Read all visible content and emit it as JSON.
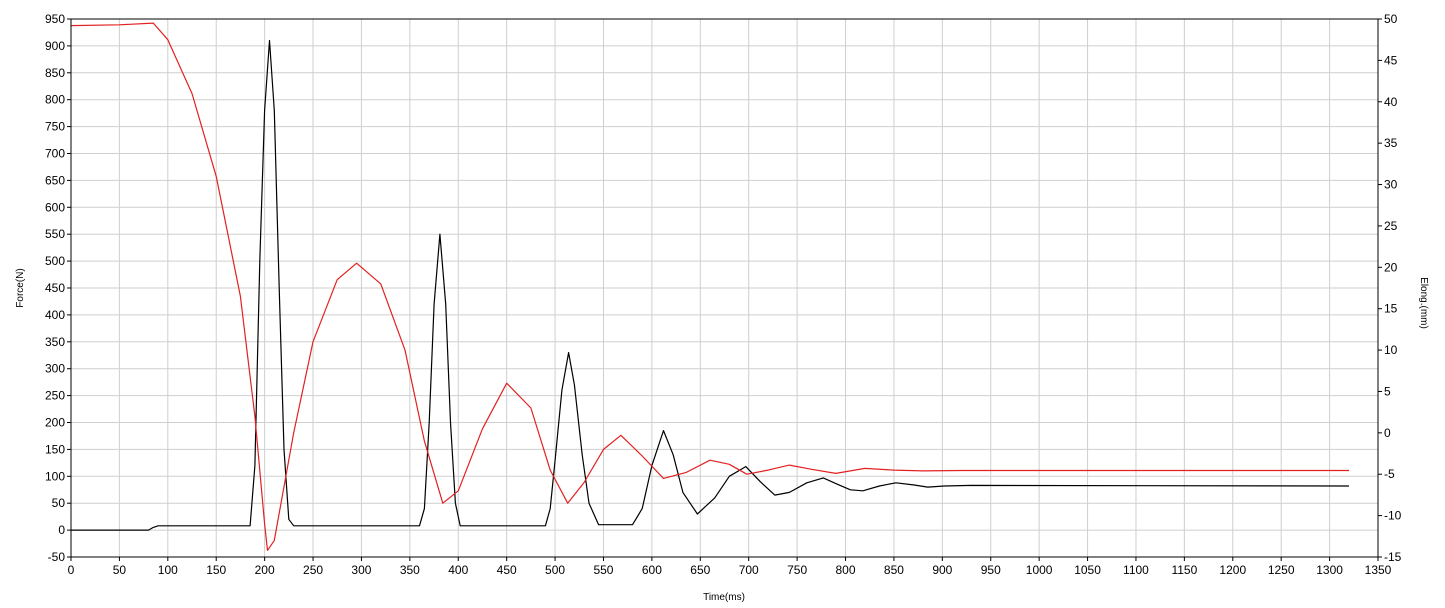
{
  "chart_data": {
    "type": "line",
    "xlabel": "Time(ms)",
    "ylabel_left": "Force(N)",
    "ylabel_right": "Elong.(mm)",
    "xlim": [
      0,
      1350
    ],
    "ylim_left": [
      -50,
      950
    ],
    "ylim_right": [
      -15,
      50
    ],
    "x_ticks": [
      0,
      50,
      100,
      150,
      200,
      250,
      300,
      350,
      400,
      450,
      500,
      550,
      600,
      650,
      700,
      750,
      800,
      850,
      900,
      950,
      1000,
      1050,
      1100,
      1150,
      1200,
      1250,
      1300,
      1350
    ],
    "y_left_ticks": [
      -50,
      0,
      50,
      100,
      150,
      200,
      250,
      300,
      350,
      400,
      450,
      500,
      550,
      600,
      650,
      700,
      750,
      800,
      850,
      900,
      950
    ],
    "y_right_ticks": [
      -15,
      -10,
      -5,
      0,
      5,
      10,
      15,
      20,
      25,
      30,
      35,
      40,
      45,
      50
    ],
    "grid": true,
    "series": [
      {
        "axis": "left",
        "color": "#000000",
        "points": [
          [
            0,
            0
          ],
          [
            80,
            0
          ],
          [
            85,
            5
          ],
          [
            90,
            8
          ],
          [
            185,
            8
          ],
          [
            190,
            120
          ],
          [
            195,
            500
          ],
          [
            200,
            780
          ],
          [
            205,
            910
          ],
          [
            210,
            780
          ],
          [
            215,
            450
          ],
          [
            220,
            150
          ],
          [
            225,
            20
          ],
          [
            230,
            8
          ],
          [
            360,
            8
          ],
          [
            365,
            40
          ],
          [
            370,
            200
          ],
          [
            375,
            420
          ],
          [
            381,
            550
          ],
          [
            387,
            420
          ],
          [
            392,
            200
          ],
          [
            397,
            50
          ],
          [
            402,
            8
          ],
          [
            490,
            8
          ],
          [
            495,
            40
          ],
          [
            500,
            130
          ],
          [
            507,
            260
          ],
          [
            514,
            330
          ],
          [
            520,
            270
          ],
          [
            528,
            140
          ],
          [
            535,
            50
          ],
          [
            545,
            10
          ],
          [
            580,
            10
          ],
          [
            590,
            40
          ],
          [
            600,
            120
          ],
          [
            612,
            185
          ],
          [
            622,
            140
          ],
          [
            632,
            70
          ],
          [
            647,
            30
          ],
          [
            665,
            60
          ],
          [
            680,
            100
          ],
          [
            697,
            118
          ],
          [
            712,
            90
          ],
          [
            727,
            65
          ],
          [
            742,
            70
          ],
          [
            760,
            88
          ],
          [
            777,
            97
          ],
          [
            792,
            85
          ],
          [
            805,
            75
          ],
          [
            818,
            73
          ],
          [
            835,
            82
          ],
          [
            852,
            88
          ],
          [
            870,
            84
          ],
          [
            885,
            80
          ],
          [
            902,
            82
          ],
          [
            930,
            83
          ],
          [
            1320,
            82
          ]
        ]
      },
      {
        "axis": "right",
        "color": "#e32020",
        "points": [
          [
            0,
            49.2
          ],
          [
            50,
            49.3
          ],
          [
            85,
            49.5
          ],
          [
            100,
            47.5
          ],
          [
            125,
            41.0
          ],
          [
            150,
            31.0
          ],
          [
            175,
            16.5
          ],
          [
            190,
            2.0
          ],
          [
            200,
            -11.0
          ],
          [
            203,
            -14.2
          ],
          [
            210,
            -13.0
          ],
          [
            230,
            0.0
          ],
          [
            250,
            11.0
          ],
          [
            275,
            18.5
          ],
          [
            295,
            20.5
          ],
          [
            320,
            18.0
          ],
          [
            345,
            10.0
          ],
          [
            365,
            -1.0
          ],
          [
            384,
            -8.5
          ],
          [
            400,
            -7.0
          ],
          [
            425,
            0.5
          ],
          [
            450,
            6.0
          ],
          [
            475,
            3.0
          ],
          [
            495,
            -4.5
          ],
          [
            513,
            -8.5
          ],
          [
            530,
            -6.0
          ],
          [
            550,
            -2.0
          ],
          [
            568,
            -0.3
          ],
          [
            590,
            -2.8
          ],
          [
            612,
            -5.5
          ],
          [
            635,
            -4.8
          ],
          [
            660,
            -3.3
          ],
          [
            680,
            -3.8
          ],
          [
            698,
            -5.0
          ],
          [
            720,
            -4.5
          ],
          [
            742,
            -3.9
          ],
          [
            765,
            -4.4
          ],
          [
            790,
            -4.9
          ],
          [
            820,
            -4.3
          ],
          [
            850,
            -4.5
          ],
          [
            880,
            -4.6
          ],
          [
            920,
            -4.55
          ],
          [
            1000,
            -4.55
          ],
          [
            1100,
            -4.55
          ],
          [
            1200,
            -4.55
          ],
          [
            1320,
            -4.55
          ]
        ]
      }
    ]
  }
}
